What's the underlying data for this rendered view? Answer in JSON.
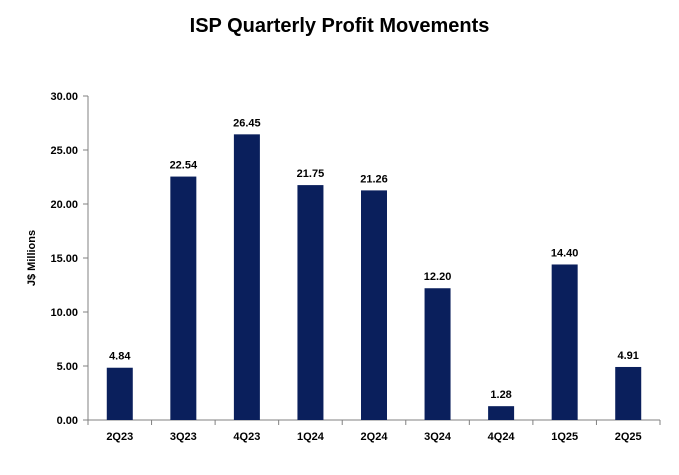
{
  "chart_data": {
    "type": "bar",
    "title": "ISP Quarterly Profit Movements",
    "xlabel": "",
    "ylabel": "J$ Millions",
    "categories": [
      "2Q23",
      "3Q23",
      "4Q23",
      "1Q24",
      "2Q24",
      "3Q24",
      "4Q24",
      "1Q25",
      "2Q25"
    ],
    "values": [
      4.84,
      22.54,
      26.45,
      21.75,
      21.26,
      12.2,
      1.28,
      14.4,
      4.91
    ],
    "value_labels": [
      "4.84",
      "22.54",
      "26.45",
      "21.75",
      "21.26",
      "12.20",
      "1.28",
      "14.40",
      "4.91"
    ],
    "ylim": [
      0,
      30
    ],
    "yticks": [
      "0.00",
      "5.00",
      "10.00",
      "15.00",
      "20.00",
      "25.00",
      "30.00"
    ],
    "ytick_values": [
      0,
      5,
      10,
      15,
      20,
      25,
      30
    ],
    "bar_color": "#0a1f5c",
    "grid": false,
    "legend": "none"
  }
}
